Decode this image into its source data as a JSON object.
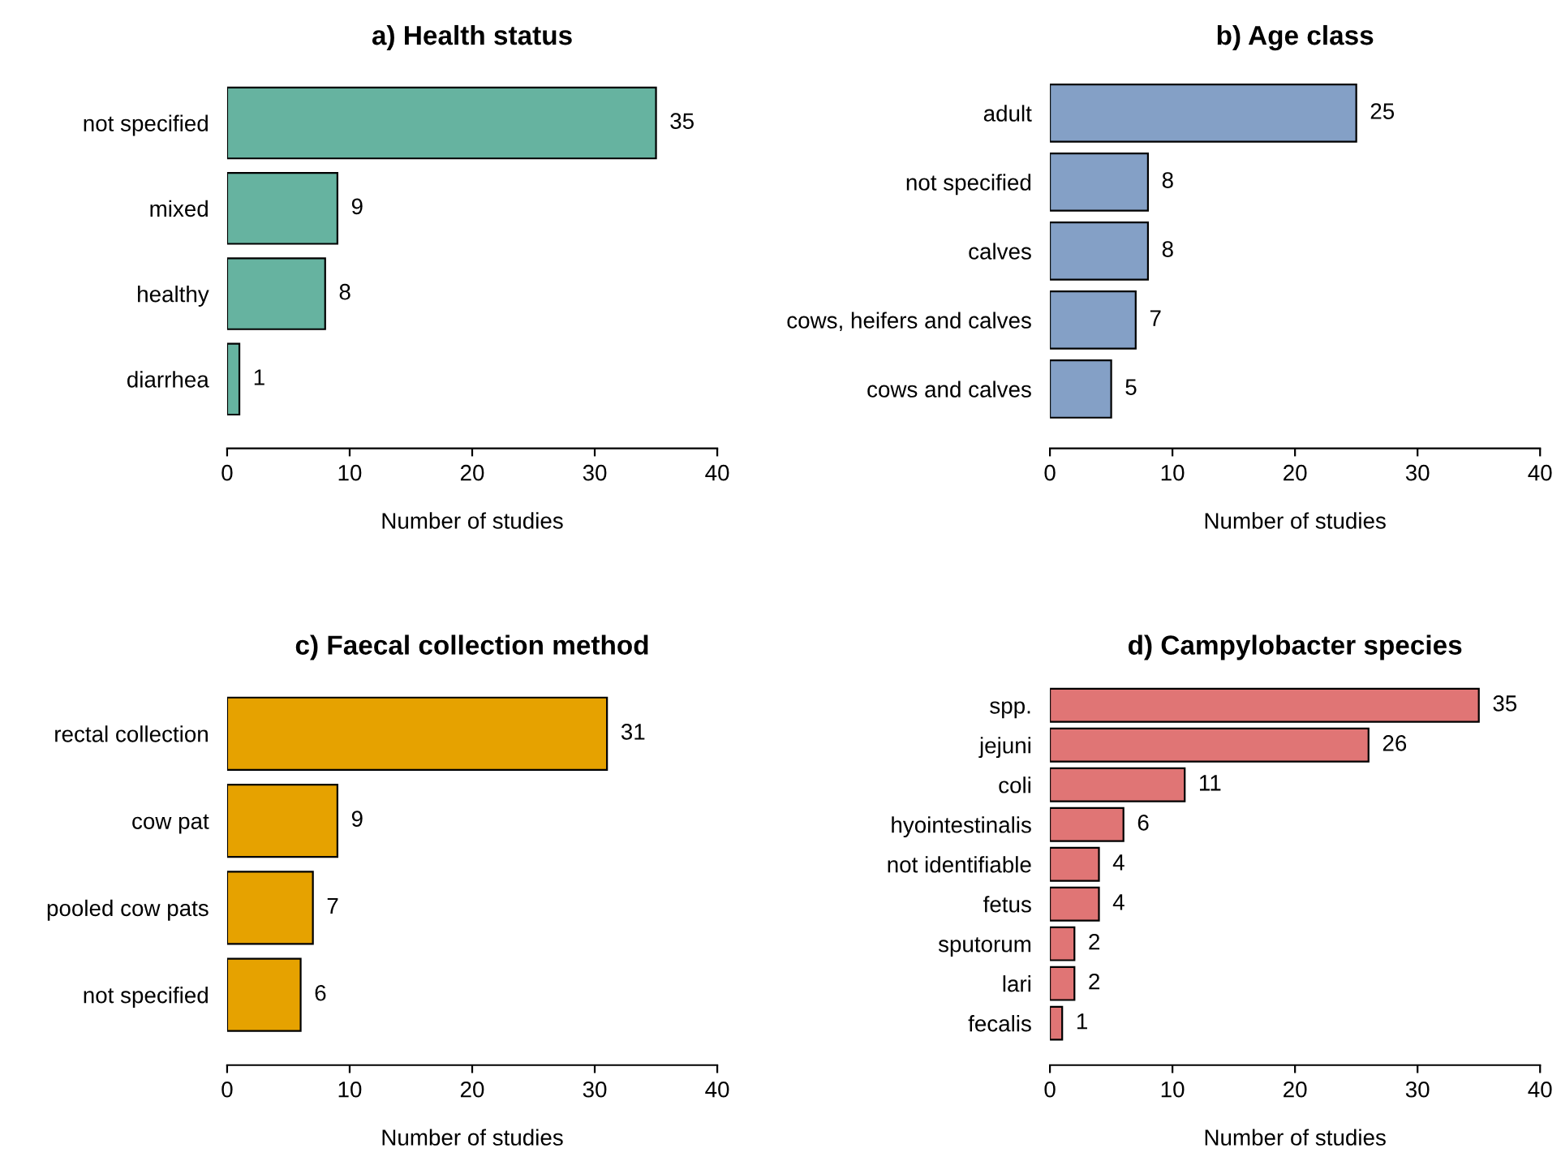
{
  "chart_data": [
    {
      "type": "bar",
      "orientation": "horizontal",
      "title": "a) Health status",
      "xlabel": "Number of studies",
      "categories": [
        "not specified",
        "mixed",
        "healthy",
        "diarrhea"
      ],
      "values": [
        35,
        9,
        8,
        1
      ],
      "color": "#66b3a0",
      "xlim": [
        0,
        40
      ],
      "xticks": [
        0,
        10,
        20,
        30,
        40
      ],
      "data_labels": true,
      "grid": false,
      "legend": false
    },
    {
      "type": "bar",
      "orientation": "horizontal",
      "title": "b) Age class",
      "xlabel": "Number of studies",
      "categories": [
        "adult",
        "not specified",
        "calves",
        "cows, heifers and calves",
        "cows and calves"
      ],
      "values": [
        25,
        8,
        8,
        7,
        5
      ],
      "color": "#84a0c6",
      "xlim": [
        0,
        40
      ],
      "xticks": [
        0,
        10,
        20,
        30,
        40
      ],
      "data_labels": true,
      "grid": false,
      "legend": false
    },
    {
      "type": "bar",
      "orientation": "horizontal",
      "title": "c) Faecal collection method",
      "xlabel": "Number of studies",
      "categories": [
        "rectal collection",
        "cow pat",
        "pooled cow pats",
        "not specified"
      ],
      "values": [
        31,
        9,
        7,
        6
      ],
      "color": "#e6a200",
      "xlim": [
        0,
        40
      ],
      "xticks": [
        0,
        10,
        20,
        30,
        40
      ],
      "data_labels": true,
      "grid": false,
      "legend": false
    },
    {
      "type": "bar",
      "orientation": "horizontal",
      "title": "d) Campylobacter species",
      "xlabel": "Number of studies",
      "categories": [
        "spp.",
        "jejuni",
        "coli",
        "hyointestinalis",
        "not identifiable",
        "fetus",
        "sputorum",
        "lari",
        "fecalis"
      ],
      "values": [
        35,
        26,
        11,
        6,
        4,
        4,
        2,
        2,
        1
      ],
      "color": "#e07575",
      "xlim": [
        0,
        40
      ],
      "xticks": [
        0,
        10,
        20,
        30,
        40
      ],
      "data_labels": true,
      "grid": false,
      "legend": false
    }
  ]
}
